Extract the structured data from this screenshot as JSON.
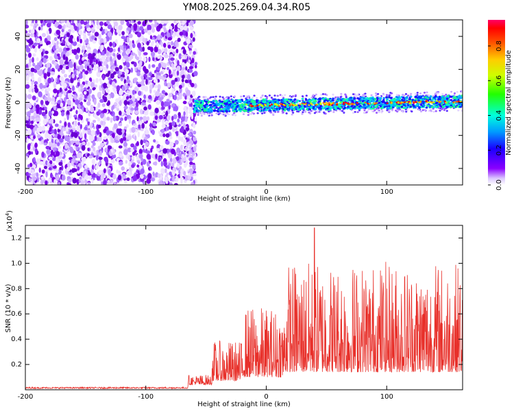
{
  "title": "YM08.2025.269.04.34.R05",
  "chart_data": [
    {
      "type": "heatmap",
      "xlabel": "Height of straight line (km)",
      "ylabel": "Frequency (Hz)",
      "xlim": [
        -200,
        163
      ],
      "ylim": [
        -50,
        50
      ],
      "xticks": [
        -200,
        -100,
        0,
        100
      ],
      "yticks": [
        -40,
        -20,
        0,
        20,
        40
      ],
      "noise_region_x": [
        -200,
        -60
      ],
      "signal_band_hz": [
        -5,
        5
      ],
      "signal_start_km": -60,
      "colorbar": {
        "label": "Normalized spectral amplitude",
        "range": [
          0.0,
          0.95
        ],
        "ticks": [
          "0.0",
          "0.2",
          "0.4",
          "0.6",
          "0.8"
        ],
        "colormap": [
          "#ffffff",
          "#cc99ff",
          "#7a00e6",
          "#2200ff",
          "#00aaff",
          "#00ffcc",
          "#33ff00",
          "#ccff00",
          "#ffcc00",
          "#ff6600",
          "#ff0000",
          "#ff0066"
        ]
      }
    },
    {
      "type": "line",
      "xlabel": "Height of straight line (km)",
      "ylabel": "SNR (10 * v/v)",
      "scale_label": "(x10",
      "scale_exponent": "4",
      "xlim": [
        -200,
        163
      ],
      "ylim": [
        0,
        1.3
      ],
      "xticks": [
        -200,
        -100,
        0,
        100
      ],
      "yticks": [
        "0.2",
        "0.4",
        "0.6",
        "0.8",
        "1.0",
        "1.2"
      ],
      "color": "#e8302a",
      "segments": [
        {
          "x_range": [
            -200,
            -65
          ],
          "level": 0.015
        },
        {
          "x_range": [
            -65,
            -45
          ],
          "level": 0.05
        },
        {
          "x_range": [
            -45,
            -20
          ],
          "level": 0.2
        },
        {
          "x_range": [
            -20,
            15
          ],
          "level": 0.35
        },
        {
          "x_range": [
            15,
            163
          ],
          "level": 0.55
        }
      ],
      "peak_value": 1.28,
      "peak_x": 40
    }
  ]
}
